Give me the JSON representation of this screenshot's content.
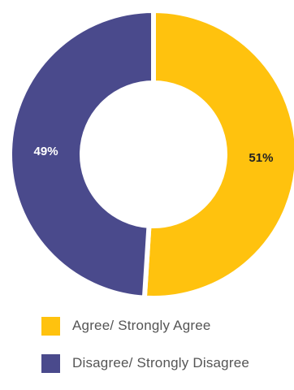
{
  "chart_data": {
    "type": "pie",
    "donut": true,
    "title": "",
    "slices": [
      {
        "label": "Agree/ Strongly Agree",
        "value": 51,
        "display": "51%",
        "color": "#FFC20E",
        "label_color": "#222222"
      },
      {
        "label": "Disagree/ Strongly Disagree",
        "value": 49,
        "display": "49%",
        "color": "#4A4A8C",
        "label_color": "#ffffff"
      }
    ],
    "legend_position": "bottom"
  },
  "legend": {
    "items": [
      {
        "label": "Agree/ Strongly Agree",
        "color": "#FFC20E"
      },
      {
        "label": "Disagree/ Strongly Disagree",
        "color": "#4A4A8C"
      }
    ]
  }
}
